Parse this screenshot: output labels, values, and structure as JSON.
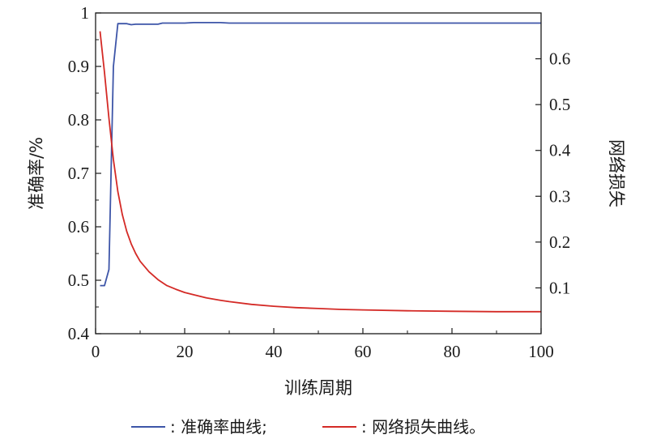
{
  "chart_data": {
    "type": "line",
    "xlabel": "训练周期",
    "ylabel_left": "准确率/%",
    "ylabel_right": "网络损失",
    "xlim": [
      0,
      100
    ],
    "ylim_left": [
      0.4,
      1.0
    ],
    "ylim_right": [
      0.0,
      0.7
    ],
    "x_ticks": [
      0,
      20,
      40,
      60,
      80,
      100
    ],
    "y_ticks_left": [
      0.4,
      0.5,
      0.6,
      0.7,
      0.8,
      0.9,
      1.0
    ],
    "y_ticks_right": [
      0.1,
      0.2,
      0.3,
      0.4,
      0.5,
      0.6
    ],
    "grid": false,
    "series": [
      {
        "name": "准确率曲线",
        "axis": "left",
        "color": "#3d55a8",
        "x": [
          1,
          2,
          3,
          4,
          5,
          6,
          7,
          8,
          9,
          10,
          12,
          14,
          15,
          16,
          18,
          20,
          22,
          25,
          28,
          30,
          35,
          40,
          50,
          60,
          70,
          80,
          90,
          100
        ],
        "y": [
          0.49,
          0.49,
          0.52,
          0.9,
          0.98,
          0.98,
          0.98,
          0.978,
          0.979,
          0.979,
          0.979,
          0.979,
          0.981,
          0.981,
          0.981,
          0.981,
          0.982,
          0.982,
          0.982,
          0.981,
          0.981,
          0.981,
          0.981,
          0.981,
          0.981,
          0.981,
          0.981,
          0.981
        ]
      },
      {
        "name": "网络损失曲线",
        "axis": "right",
        "color": "#d42a26",
        "x": [
          1,
          2,
          3,
          4,
          5,
          6,
          7,
          8,
          9,
          10,
          12,
          14,
          16,
          18,
          20,
          22,
          25,
          28,
          30,
          35,
          40,
          45,
          50,
          55,
          60,
          70,
          80,
          90,
          100
        ],
        "y": [
          0.66,
          0.57,
          0.47,
          0.38,
          0.31,
          0.26,
          0.223,
          0.196,
          0.175,
          0.158,
          0.135,
          0.118,
          0.105,
          0.097,
          0.09,
          0.085,
          0.078,
          0.073,
          0.07,
          0.064,
          0.06,
          0.057,
          0.055,
          0.053,
          0.052,
          0.05,
          0.049,
          0.048,
          0.048
        ]
      }
    ]
  },
  "legend": {
    "accuracy_label": ": 准确率曲线;",
    "loss_label": ": 网络损失曲线。"
  }
}
